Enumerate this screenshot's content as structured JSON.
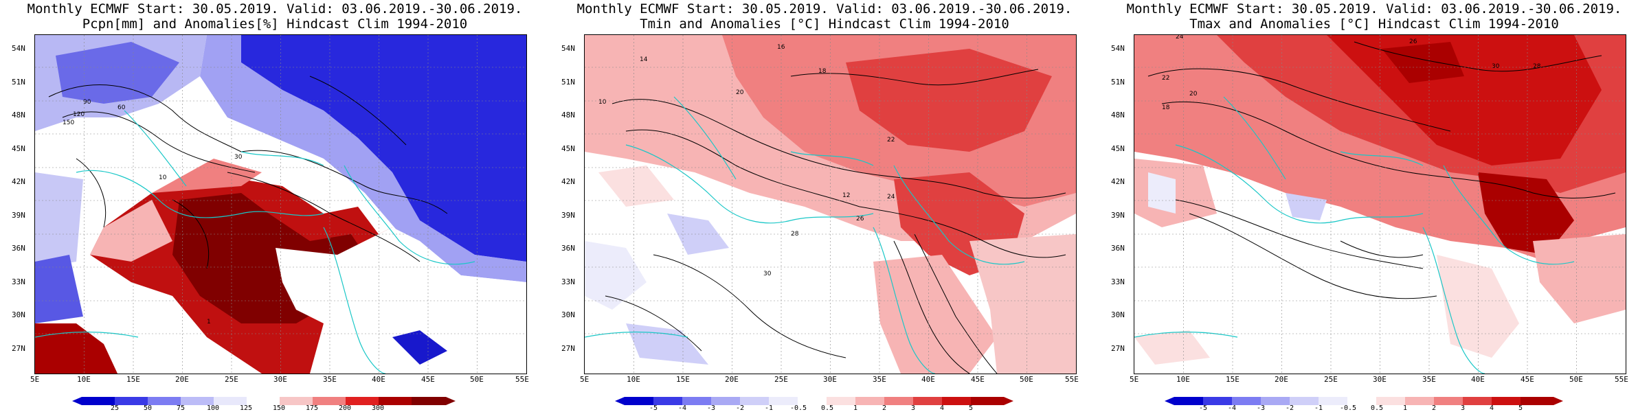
{
  "panels": [
    {
      "title_line1": "Monthly ECMWF Start: 30.05.2019. Valid: 03.06.2019.-30.06.2019.",
      "title_line2": "Pcpn[mm] and Anomalies[%] Hindcast Clim 1994-2010",
      "colorbar_labels": [
        "25",
        "50",
        "75",
        "100",
        "125",
        "150",
        "175",
        "200",
        "300"
      ],
      "colorbar_colors": [
        "#0000cc",
        "#3a3ae6",
        "#7c7cf2",
        "#bcbcf7",
        "#e8e8fb",
        "#ffffff",
        "#f7c6c6",
        "#f08080",
        "#e02020",
        "#aa0000",
        "#800000"
      ],
      "contour_labels": [
        "60",
        "90",
        "120",
        "150",
        "30",
        "10",
        "1"
      ]
    },
    {
      "title_line1": "Monthly ECMWF Start: 30.05.2019. Valid: 03.06.2019.-30.06.2019.",
      "title_line2": "Tmin and Anomalies [°C] Hindcast Clim 1994-2010",
      "colorbar_labels": [
        "-5",
        "-4",
        "-3",
        "-2",
        "-1",
        "-0.5",
        "0.5",
        "1",
        "2",
        "3",
        "4",
        "5"
      ],
      "colorbar_colors": [
        "#0000cc",
        "#3a3ae6",
        "#7c7cf2",
        "#a9a9f4",
        "#cfcff8",
        "#ececfb",
        "#ffffff",
        "#fbe0e0",
        "#f7b4b4",
        "#f08080",
        "#e04040",
        "#cc1010",
        "#aa0000"
      ],
      "contour_labels": [
        "16",
        "18",
        "20",
        "14",
        "12",
        "22",
        "24",
        "26",
        "28",
        "30",
        "10"
      ]
    },
    {
      "title_line1": "Monthly ECMWF Start: 30.05.2019. Valid: 03.06.2019.-30.06.2019.",
      "title_line2": "Tmax and Anomalies [°C] Hindcast Clim 1994-2010",
      "colorbar_labels": [
        "-5",
        "-4",
        "-3",
        "-2",
        "-1",
        "-0.5",
        "0.5",
        "1",
        "2",
        "3",
        "4",
        "5"
      ],
      "colorbar_colors": [
        "#0000cc",
        "#3a3ae6",
        "#7c7cf2",
        "#a9a9f4",
        "#cfcff8",
        "#ececfb",
        "#ffffff",
        "#fbe0e0",
        "#f7b4b4",
        "#f08080",
        "#e04040",
        "#cc1010",
        "#aa0000"
      ],
      "contour_labels": [
        "24",
        "26",
        "28",
        "30",
        "22",
        "20",
        "18"
      ]
    }
  ],
  "lat_labels": [
    "54N",
    "51N",
    "48N",
    "45N",
    "42N",
    "39N",
    "36N",
    "33N",
    "30N",
    "27N"
  ],
  "lon_labels": [
    "5E",
    "10E",
    "15E",
    "20E",
    "25E",
    "30E",
    "35E",
    "40E",
    "45E",
    "50E",
    "55E"
  ]
}
